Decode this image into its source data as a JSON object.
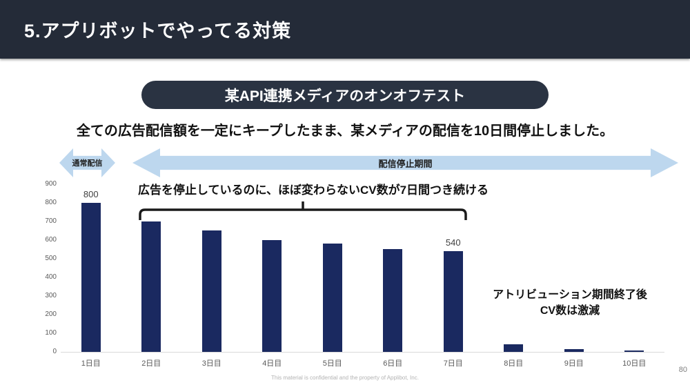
{
  "header": {
    "title": "5.アプリボットでやってる対策"
  },
  "badge": {
    "label": "某API連携メディアのオンオフテスト"
  },
  "subtitle": "全ての広告配信額を一定にキープしたまま、某メディアの配信を10日間停止しました。",
  "banners": {
    "normal_delivery": "通常配信",
    "stop_period": "配信停止期間"
  },
  "annotations": {
    "bracket_note": "広告を停止しているのに、ほぼ変わらないCV数が7日間つき続ける",
    "attribution": [
      "アトリビューション期間終了後",
      "CV数は激減"
    ]
  },
  "footer": {
    "confidential": "This material is confidential and the property of Applibot, Inc.",
    "page_number": "80"
  },
  "colors": {
    "header_bg": "#242b38",
    "badge_bg": "#2a3342",
    "banner_fill": "#bdd7ee",
    "bar_fill": "#1a2960",
    "axis_text": "#595959",
    "baseline": "#d9d9d9"
  },
  "chart_data": {
    "type": "bar",
    "title": "",
    "categories": [
      "1日目",
      "2日目",
      "3日目",
      "4日目",
      "5日目",
      "6日目",
      "7日目",
      "8日目",
      "9日目",
      "10日目"
    ],
    "values": [
      800,
      700,
      650,
      600,
      580,
      550,
      540,
      40,
      15,
      8
    ],
    "data_labels": [
      {
        "index": 0,
        "text": "800"
      },
      {
        "index": 6,
        "text": "540"
      }
    ],
    "xlabel": "",
    "ylabel": "",
    "ylim": [
      0,
      900
    ],
    "yticks": [
      0,
      100,
      200,
      300,
      400,
      500,
      600,
      700,
      800,
      900
    ],
    "grid": false,
    "legend": false,
    "bar_color": "#1a2960"
  }
}
